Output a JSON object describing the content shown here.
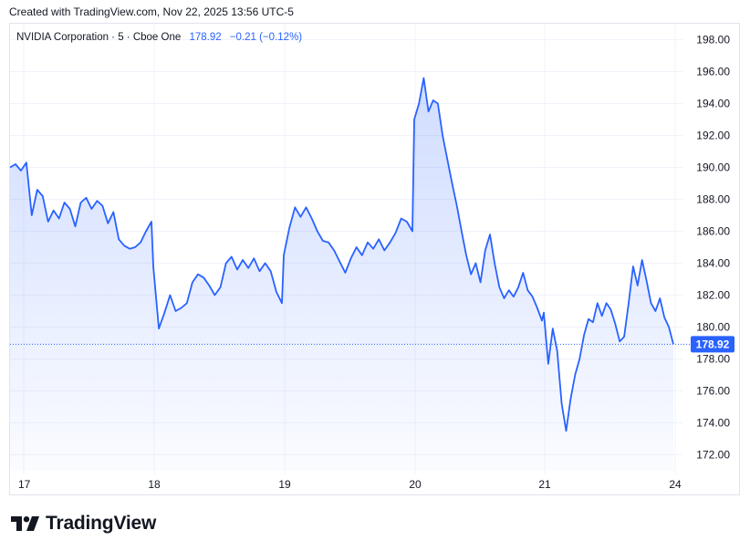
{
  "created": "Created with TradingView.com, Nov 22, 2025 13:56 UTC-5",
  "legend": {
    "symbol": "NVIDIA Corporation · 5 · Cboe One",
    "last": "178.92",
    "change": "−0.21 (−0.12%)"
  },
  "brand": "TradingView",
  "colors": {
    "line": "#2962ff",
    "grid": "#f0f3fa",
    "axis_text": "#131722"
  },
  "chart_data": {
    "type": "area",
    "title": "NVIDIA Corporation · 5 · Cboe One",
    "ylim": [
      171,
      199
    ],
    "yticks": [
      "172.00",
      "174.00",
      "176.00",
      "178.00",
      "180.00",
      "182.00",
      "184.00",
      "186.00",
      "188.00",
      "190.00",
      "192.00",
      "194.00",
      "196.00",
      "198.00"
    ],
    "xticks": [
      "17",
      "18",
      "19",
      "20",
      "21",
      "24"
    ],
    "last_price": "178.92",
    "grid": true,
    "series": [
      {
        "values": [
          {
            "x": "17",
            "y": 190.0
          },
          {
            "x": "17",
            "y": 190.2
          },
          {
            "x": "17",
            "y": 189.8
          },
          {
            "x": "17",
            "y": 190.3
          },
          {
            "x": "17",
            "y": 187.0
          },
          {
            "x": "17",
            "y": 188.6
          },
          {
            "x": "17",
            "y": 188.2
          },
          {
            "x": "17",
            "y": 186.6
          },
          {
            "x": "17",
            "y": 187.3
          },
          {
            "x": "17",
            "y": 186.8
          },
          {
            "x": "17",
            "y": 187.8
          },
          {
            "x": "17",
            "y": 187.4
          },
          {
            "x": "17",
            "y": 186.3
          },
          {
            "x": "17",
            "y": 187.8
          },
          {
            "x": "17",
            "y": 188.1
          },
          {
            "x": "17",
            "y": 187.4
          },
          {
            "x": "17",
            "y": 187.9
          },
          {
            "x": "17",
            "y": 187.6
          },
          {
            "x": "17",
            "y": 186.5
          },
          {
            "x": "17",
            "y": 187.2
          },
          {
            "x": "17",
            "y": 185.5
          },
          {
            "x": "17",
            "y": 185.1
          },
          {
            "x": "17",
            "y": 184.9
          },
          {
            "x": "17",
            "y": 185.0
          },
          {
            "x": "17",
            "y": 185.3
          },
          {
            "x": "17",
            "y": 186.0
          },
          {
            "x": "17",
            "y": 186.6
          },
          {
            "x": "18",
            "y": 183.8
          },
          {
            "x": "18",
            "y": 179.9
          },
          {
            "x": "18",
            "y": 180.9
          },
          {
            "x": "18",
            "y": 182.0
          },
          {
            "x": "18",
            "y": 181.0
          },
          {
            "x": "18",
            "y": 181.2
          },
          {
            "x": "18",
            "y": 181.5
          },
          {
            "x": "18",
            "y": 182.8
          },
          {
            "x": "18",
            "y": 183.3
          },
          {
            "x": "18",
            "y": 183.1
          },
          {
            "x": "18",
            "y": 182.6
          },
          {
            "x": "18",
            "y": 182.0
          },
          {
            "x": "18",
            "y": 182.5
          },
          {
            "x": "18",
            "y": 184.0
          },
          {
            "x": "18",
            "y": 184.4
          },
          {
            "x": "18",
            "y": 183.6
          },
          {
            "x": "18",
            "y": 184.2
          },
          {
            "x": "18",
            "y": 183.7
          },
          {
            "x": "18",
            "y": 184.3
          },
          {
            "x": "18",
            "y": 183.5
          },
          {
            "x": "18",
            "y": 184.0
          },
          {
            "x": "18",
            "y": 183.5
          },
          {
            "x": "18",
            "y": 182.2
          },
          {
            "x": "18",
            "y": 181.5
          },
          {
            "x": "19",
            "y": 184.5
          },
          {
            "x": "19",
            "y": 186.2
          },
          {
            "x": "19",
            "y": 187.5
          },
          {
            "x": "19",
            "y": 186.9
          },
          {
            "x": "19",
            "y": 187.5
          },
          {
            "x": "19",
            "y": 186.8
          },
          {
            "x": "19",
            "y": 186.0
          },
          {
            "x": "19",
            "y": 185.4
          },
          {
            "x": "19",
            "y": 185.3
          },
          {
            "x": "19",
            "y": 184.8
          },
          {
            "x": "19",
            "y": 184.1
          },
          {
            "x": "19",
            "y": 183.4
          },
          {
            "x": "19",
            "y": 184.3
          },
          {
            "x": "19",
            "y": 185.0
          },
          {
            "x": "19",
            "y": 184.5
          },
          {
            "x": "19",
            "y": 185.3
          },
          {
            "x": "19",
            "y": 184.9
          },
          {
            "x": "19",
            "y": 185.5
          },
          {
            "x": "19",
            "y": 184.8
          },
          {
            "x": "19",
            "y": 185.3
          },
          {
            "x": "19",
            "y": 185.9
          },
          {
            "x": "19",
            "y": 186.8
          },
          {
            "x": "19",
            "y": 186.6
          },
          {
            "x": "19",
            "y": 186.0
          },
          {
            "x": "20",
            "y": 193.0
          },
          {
            "x": "20",
            "y": 194.0
          },
          {
            "x": "20",
            "y": 195.6
          },
          {
            "x": "20",
            "y": 193.5
          },
          {
            "x": "20",
            "y": 194.2
          },
          {
            "x": "20",
            "y": 194.0
          },
          {
            "x": "20",
            "y": 192.0
          },
          {
            "x": "20",
            "y": 190.5
          },
          {
            "x": "20",
            "y": 189.0
          },
          {
            "x": "20",
            "y": 187.6
          },
          {
            "x": "20",
            "y": 186.0
          },
          {
            "x": "20",
            "y": 184.5
          },
          {
            "x": "20",
            "y": 183.3
          },
          {
            "x": "20",
            "y": 184.0
          },
          {
            "x": "20",
            "y": 182.8
          },
          {
            "x": "20",
            "y": 184.8
          },
          {
            "x": "20",
            "y": 185.8
          },
          {
            "x": "20",
            "y": 184.0
          },
          {
            "x": "20",
            "y": 182.5
          },
          {
            "x": "20",
            "y": 181.8
          },
          {
            "x": "20",
            "y": 182.3
          },
          {
            "x": "20",
            "y": 181.9
          },
          {
            "x": "20",
            "y": 182.5
          },
          {
            "x": "20",
            "y": 183.4
          },
          {
            "x": "20",
            "y": 182.3
          },
          {
            "x": "20",
            "y": 181.9
          },
          {
            "x": "20",
            "y": 181.2
          },
          {
            "x": "20",
            "y": 180.4
          },
          {
            "x": "21",
            "y": 180.9
          },
          {
            "x": "21",
            "y": 177.7
          },
          {
            "x": "21",
            "y": 179.9
          },
          {
            "x": "21",
            "y": 178.5
          },
          {
            "x": "21",
            "y": 175.2
          },
          {
            "x": "21",
            "y": 173.5
          },
          {
            "x": "21",
            "y": 175.5
          },
          {
            "x": "21",
            "y": 177.0
          },
          {
            "x": "21",
            "y": 178.0
          },
          {
            "x": "21",
            "y": 179.5
          },
          {
            "x": "21",
            "y": 180.5
          },
          {
            "x": "21",
            "y": 180.3
          },
          {
            "x": "21",
            "y": 181.5
          },
          {
            "x": "21",
            "y": 180.7
          },
          {
            "x": "21",
            "y": 181.5
          },
          {
            "x": "21",
            "y": 181.1
          },
          {
            "x": "21",
            "y": 180.2
          },
          {
            "x": "21",
            "y": 179.1
          },
          {
            "x": "21",
            "y": 179.4
          },
          {
            "x": "21",
            "y": 181.5
          },
          {
            "x": "21",
            "y": 183.8
          },
          {
            "x": "21",
            "y": 182.6
          },
          {
            "x": "21",
            "y": 184.2
          },
          {
            "x": "21",
            "y": 182.9
          },
          {
            "x": "21",
            "y": 181.5
          },
          {
            "x": "21",
            "y": 181.0
          },
          {
            "x": "21",
            "y": 181.8
          },
          {
            "x": "21",
            "y": 180.6
          },
          {
            "x": "21",
            "y": 180.0
          },
          {
            "x": "21",
            "y": 178.92
          }
        ]
      }
    ]
  }
}
